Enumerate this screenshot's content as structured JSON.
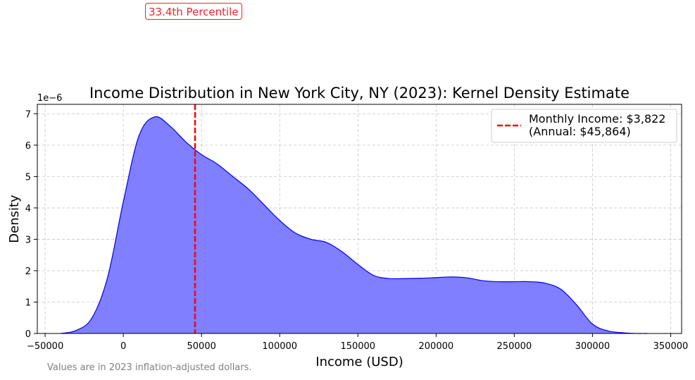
{
  "percentile_label": "33.4th Percentile",
  "footnote": "Values are in 2023 inflation-adjusted dollars.",
  "colors": {
    "fill": "#7f7fff",
    "line": "#0000ee",
    "marker": "#ff0000",
    "grid": "#c8c8c8",
    "text": "#000000"
  },
  "chart_data": {
    "type": "area",
    "title": "Income Distribution in New York City, NY (2023): Kernel Density Estimate",
    "xlabel": "Income (USD)",
    "ylabel": "Density",
    "y_offset_label": "1e−6",
    "xlim": [
      -55000,
      357000
    ],
    "ylim": [
      0,
      7.3
    ],
    "y_scale": "1e-6",
    "grid": true,
    "legend_placement": "top-right",
    "x_ticks": [
      -50000,
      0,
      50000,
      100000,
      150000,
      200000,
      250000,
      300000,
      350000
    ],
    "x_tick_labels": [
      "−50000",
      "0",
      "50000",
      "100000",
      "150000",
      "200000",
      "250000",
      "300000",
      "350000"
    ],
    "y_ticks": [
      0,
      1,
      2,
      3,
      4,
      5,
      6,
      7
    ],
    "y_tick_labels": [
      "0",
      "1",
      "2",
      "3",
      "4",
      "5",
      "6",
      "7"
    ],
    "series": [
      {
        "x": [
          -40000,
          -30000,
          -20000,
          -10000,
          0,
          10000,
          20000,
          30000,
          40000,
          50000,
          60000,
          70000,
          80000,
          90000,
          100000,
          110000,
          120000,
          130000,
          140000,
          150000,
          160000,
          170000,
          180000,
          190000,
          200000,
          210000,
          220000,
          230000,
          240000,
          250000,
          260000,
          270000,
          280000,
          290000,
          300000,
          310000,
          320000,
          330000,
          335000
        ],
        "y": [
          0.0,
          0.1,
          0.5,
          1.8,
          4.2,
          6.3,
          6.9,
          6.6,
          6.1,
          5.7,
          5.4,
          5.0,
          4.6,
          4.1,
          3.6,
          3.2,
          3.0,
          2.9,
          2.6,
          2.2,
          1.85,
          1.75,
          1.75,
          1.76,
          1.78,
          1.8,
          1.77,
          1.68,
          1.65,
          1.65,
          1.65,
          1.6,
          1.4,
          0.9,
          0.3,
          0.08,
          0.02,
          0.0,
          0.0
        ]
      }
    ],
    "marker": {
      "x": 45864,
      "legend_lines": [
        "Monthly Income: $3,822",
        "(Annual: $45,864)"
      ]
    }
  }
}
